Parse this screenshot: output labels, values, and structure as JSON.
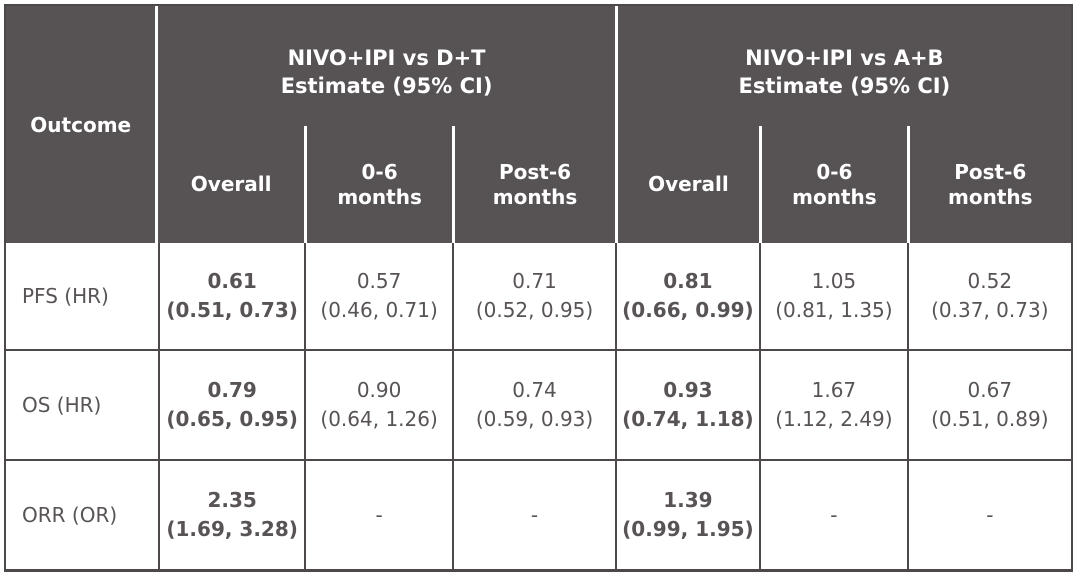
{
  "table": {
    "outcome_header": "Outcome",
    "groups": [
      {
        "title": "NIVO+IPI vs D+T",
        "subtitle": "Estimate (95% CI)",
        "columns": [
          "Overall",
          "0-6 months",
          "Post-6 months"
        ]
      },
      {
        "title": "NIVO+IPI vs A+B",
        "subtitle": "Estimate (95% CI)",
        "columns": [
          "Overall",
          "0-6 months",
          "Post-6 months"
        ]
      }
    ],
    "rows": [
      {
        "outcome": "PFS (HR)",
        "cells": [
          {
            "estimate": "0.61",
            "ci": "(0.51, 0.73)"
          },
          {
            "estimate": "0.57",
            "ci": "(0.46, 0.71)"
          },
          {
            "estimate": "0.71",
            "ci": "(0.52, 0.95)"
          },
          {
            "estimate": "0.81",
            "ci": "(0.66, 0.99)"
          },
          {
            "estimate": "1.05",
            "ci": "(0.81, 1.35)"
          },
          {
            "estimate": "0.52",
            "ci": "(0.37, 0.73)"
          }
        ]
      },
      {
        "outcome": "OS (HR)",
        "cells": [
          {
            "estimate": "0.79",
            "ci": "(0.65, 0.95)"
          },
          {
            "estimate": "0.90",
            "ci": "(0.64, 1.26)"
          },
          {
            "estimate": "0.74",
            "ci": "(0.59, 0.93)"
          },
          {
            "estimate": "0.93",
            "ci": "(0.74, 1.18)"
          },
          {
            "estimate": "1.67",
            "ci": "(1.12, 2.49)"
          },
          {
            "estimate": "0.67",
            "ci": "(0.51, 0.89)"
          }
        ]
      },
      {
        "outcome": "ORR (OR)",
        "cells": [
          {
            "estimate": "2.35",
            "ci": "(1.69, 3.28)"
          },
          {
            "estimate": "-",
            "ci": ""
          },
          {
            "estimate": "-",
            "ci": ""
          },
          {
            "estimate": "1.39",
            "ci": "(0.99, 1.95)"
          },
          {
            "estimate": "-",
            "ci": ""
          },
          {
            "estimate": "-",
            "ci": ""
          }
        ]
      }
    ]
  },
  "colors": {
    "header_bg": "#575354",
    "header_text": "#ffffff",
    "body_text": "#585355",
    "border": "#4d494b",
    "background": "#ffffff"
  },
  "chart_data": {
    "type": "table",
    "title": "",
    "column_groups": [
      "NIVO+IPI vs D+T Estimate (95% CI)",
      "NIVO+IPI vs A+B Estimate (95% CI)"
    ],
    "columns": [
      "Outcome",
      "NIVO+IPI vs D+T | Overall",
      "NIVO+IPI vs D+T | 0-6 months",
      "NIVO+IPI vs D+T | Post-6 months",
      "NIVO+IPI vs A+B | Overall",
      "NIVO+IPI vs A+B | 0-6 months",
      "NIVO+IPI vs A+B | Post-6 months"
    ],
    "rows": [
      [
        "PFS (HR)",
        "0.61 (0.51, 0.73)",
        "0.57 (0.46, 0.71)",
        "0.71 (0.52, 0.95)",
        "0.81 (0.66, 0.99)",
        "1.05 (0.81, 1.35)",
        "0.52 (0.37, 0.73)"
      ],
      [
        "OS (HR)",
        "0.79 (0.65, 0.95)",
        "0.90 (0.64, 1.26)",
        "0.74 (0.59, 0.93)",
        "0.93 (0.74, 1.18)",
        "1.67 (1.12, 2.49)",
        "0.67 (0.51, 0.89)"
      ],
      [
        "ORR (OR)",
        "2.35 (1.69, 3.28)",
        "-",
        "-",
        "1.39 (0.99, 1.95)",
        "-",
        "-"
      ]
    ],
    "notes": "Overall columns are bold; '-' indicates no estimate shown"
  }
}
